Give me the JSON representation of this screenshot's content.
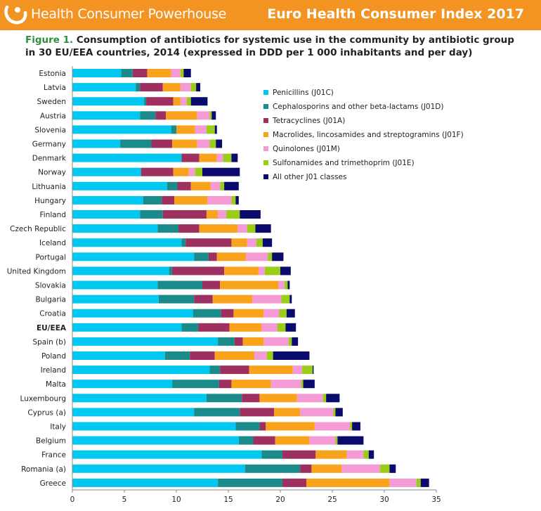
{
  "header": {
    "logo_text": "Health Consumer Powerhouse",
    "index_title": "Euro Health Consumer Index 2017",
    "logo_icon": "hcp-swirl-icon",
    "bar_color": "#f39322"
  },
  "figure": {
    "number": "Figure 1.",
    "title": "Consumption of antibiotics for systemic use in the community by antibiotic group in 30 EU/EEA countries, 2014 (expressed in DDD per 1 000 inhabitants and per day)"
  },
  "chart_data": {
    "type": "bar",
    "orientation": "horizontal",
    "stacked": true,
    "xlim": [
      0,
      35
    ],
    "xticks": [
      0,
      5,
      10,
      15,
      20,
      25,
      30,
      35
    ],
    "grid": false,
    "legend_position": "top-right",
    "categories": [
      "Estonia",
      "Latvia",
      "Sweden",
      "Austria",
      "Slovenia",
      "Germany",
      "Denmark",
      "Norway",
      "Lithuania",
      "Hungary",
      "Finland",
      "Czech Republic",
      "Iceland",
      "Portugal",
      "United Kingdom",
      "Slovakia",
      "Bulgaria",
      "Croatia",
      "EU/EEA",
      "Spain (b)",
      "Poland",
      "Ireland",
      "Malta",
      "Luxembourg",
      "Cyprus (a)",
      "Italy",
      "Belgium",
      "France",
      "Romania (a)",
      "Greece"
    ],
    "highlight_category": "EU/EEA",
    "series": [
      {
        "name": "Penicillins (J01C)",
        "color": "#00c8f0",
        "values": [
          4.7,
          6.1,
          6.9,
          6.5,
          9.5,
          4.6,
          10.5,
          6.6,
          9.1,
          6.8,
          6.5,
          8.2,
          10.5,
          11.7,
          9.3,
          8.2,
          8.3,
          11.6,
          10.5,
          14.0,
          8.9,
          13.2,
          9.6,
          12.9,
          11.7,
          15.7,
          16.0,
          18.2,
          16.6,
          14.0
        ]
      },
      {
        "name": "Cephalosporins and other beta-lactams (J01D)",
        "color": "#1b8a8a",
        "values": [
          1.1,
          0.4,
          0.2,
          1.5,
          0.5,
          3.0,
          0.0,
          0.0,
          1.0,
          1.8,
          2.2,
          2.0,
          0.4,
          1.4,
          0.3,
          4.3,
          3.4,
          2.7,
          1.6,
          1.6,
          2.4,
          1.0,
          4.5,
          3.4,
          4.4,
          2.3,
          1.4,
          2.0,
          5.3,
          6.2
        ]
      },
      {
        "name": "Tetracyclines (J01A)",
        "color": "#9e3060",
        "values": [
          1.4,
          2.2,
          2.6,
          1.0,
          0.0,
          2.0,
          1.7,
          3.1,
          1.3,
          1.2,
          4.2,
          2.0,
          4.4,
          0.8,
          5.0,
          1.7,
          1.8,
          1.2,
          3.0,
          0.8,
          2.4,
          2.8,
          1.2,
          1.7,
          3.3,
          0.6,
          2.1,
          3.2,
          1.1,
          2.3
        ]
      },
      {
        "name": "Macrolides, lincosamides and streptogramins (J01F)",
        "color": "#f9a31c",
        "values": [
          2.3,
          1.7,
          0.7,
          3.0,
          1.8,
          2.4,
          1.7,
          1.5,
          1.9,
          3.2,
          1.1,
          3.7,
          1.5,
          2.8,
          3.3,
          5.6,
          3.8,
          2.9,
          3.1,
          2.0,
          3.8,
          4.2,
          3.8,
          3.6,
          2.5,
          4.7,
          3.3,
          3.0,
          2.9,
          8.0
        ]
      },
      {
        "name": "Quinolones (J01M)",
        "color": "#f49ad4",
        "values": [
          0.9,
          1.0,
          0.6,
          1.2,
          1.1,
          1.2,
          0.6,
          0.6,
          0.9,
          2.3,
          0.8,
          0.9,
          0.9,
          2.1,
          0.6,
          0.6,
          2.8,
          1.5,
          1.5,
          2.4,
          1.2,
          0.9,
          2.9,
          2.5,
          3.2,
          3.4,
          2.5,
          1.6,
          3.7,
          2.6
        ]
      },
      {
        "name": "Sulfonamides and trimethoprim (J01E)",
        "color": "#9acd18",
        "values": [
          0.3,
          0.5,
          0.4,
          0.2,
          0.8,
          0.6,
          0.8,
          0.7,
          0.4,
          0.4,
          1.3,
          0.8,
          0.6,
          0.4,
          1.5,
          0.3,
          0.8,
          0.7,
          0.8,
          0.3,
          0.6,
          1.0,
          0.2,
          0.3,
          0.2,
          0.2,
          0.2,
          0.5,
          0.9,
          0.4
        ]
      },
      {
        "name": "All other J01 classes",
        "color": "#0b0b6e",
        "values": [
          0.7,
          0.4,
          1.6,
          0.4,
          0.2,
          0.6,
          0.6,
          3.6,
          1.4,
          0.3,
          2.0,
          1.5,
          0.9,
          1.1,
          1.0,
          0.2,
          0.2,
          0.8,
          1.0,
          0.6,
          3.5,
          0.1,
          1.1,
          1.3,
          0.7,
          0.8,
          2.5,
          0.5,
          0.6,
          0.8
        ]
      }
    ]
  }
}
